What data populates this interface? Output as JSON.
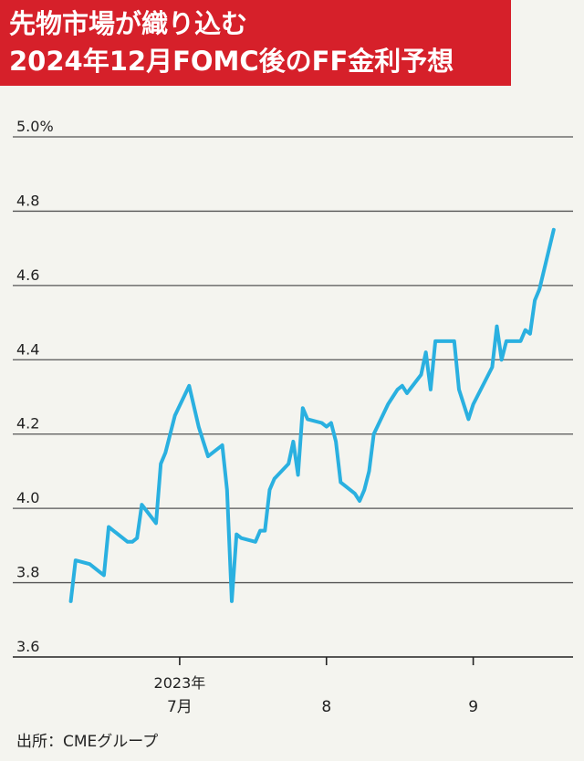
{
  "title": {
    "line1": "先物市場が織り込む",
    "line2": "2024年12月FOMC後のFF金利予想"
  },
  "source": "出所：CMEグループ",
  "colors": {
    "title_bg": "#d6202a",
    "line": "#2ab0e0",
    "grid": "#555555",
    "text": "#222222"
  },
  "chart_data": {
    "type": "line",
    "title": "先物市場が織り込む 2024年12月FOMC後のFF金利予想",
    "xlabel": "",
    "ylabel": "",
    "ylim": [
      3.6,
      5.0
    ],
    "yticks": [
      {
        "value": 5.0,
        "label": "5.0%"
      },
      {
        "value": 4.8,
        "label": "4.8"
      },
      {
        "value": 4.6,
        "label": "4.6"
      },
      {
        "value": 4.4,
        "label": "4.4"
      },
      {
        "value": 4.2,
        "label": "4.2"
      },
      {
        "value": 4.0,
        "label": "4.0"
      },
      {
        "value": 3.8,
        "label": "3.8"
      },
      {
        "value": 3.6,
        "label": "3.6"
      }
    ],
    "xticks": [
      {
        "date": "2023-07-01",
        "label": "7月",
        "year_label": "2023年"
      },
      {
        "date": "2023-08-01",
        "label": "8",
        "year_label": ""
      },
      {
        "date": "2023-09-01",
        "label": "9",
        "year_label": ""
      }
    ],
    "xlim": [
      "2023-06-05",
      "2023-09-19"
    ],
    "grid": true,
    "series": [
      {
        "name": "",
        "x": [
          "2023-06-08",
          "2023-06-09",
          "2023-06-12",
          "2023-06-13",
          "2023-06-14",
          "2023-06-15",
          "2023-06-16",
          "2023-06-19",
          "2023-06-20",
          "2023-06-21",
          "2023-06-22",
          "2023-06-23",
          "2023-06-26",
          "2023-06-27",
          "2023-06-28",
          "2023-06-29",
          "2023-06-30",
          "2023-07-03",
          "2023-07-05",
          "2023-07-06",
          "2023-07-07",
          "2023-07-10",
          "2023-07-11",
          "2023-07-12",
          "2023-07-13",
          "2023-07-14",
          "2023-07-17",
          "2023-07-18",
          "2023-07-19",
          "2023-07-20",
          "2023-07-21",
          "2023-07-24",
          "2023-07-25",
          "2023-07-26",
          "2023-07-27",
          "2023-07-28",
          "2023-07-31",
          "2023-08-01",
          "2023-08-02",
          "2023-08-03",
          "2023-08-04",
          "2023-08-07",
          "2023-08-08",
          "2023-08-09",
          "2023-08-10",
          "2023-08-11",
          "2023-08-14",
          "2023-08-15",
          "2023-08-16",
          "2023-08-17",
          "2023-08-18",
          "2023-08-21",
          "2023-08-22",
          "2023-08-23",
          "2023-08-24",
          "2023-08-25",
          "2023-08-28",
          "2023-08-29",
          "2023-08-30",
          "2023-08-31",
          "2023-09-01",
          "2023-09-05",
          "2023-09-06",
          "2023-09-07",
          "2023-09-08",
          "2023-09-11",
          "2023-09-12",
          "2023-09-13",
          "2023-09-14",
          "2023-09-15",
          "2023-09-18"
        ],
        "y": [
          3.75,
          3.86,
          3.85,
          3.84,
          3.83,
          3.82,
          3.95,
          3.92,
          3.91,
          3.91,
          3.92,
          4.01,
          3.96,
          4.12,
          4.15,
          4.2,
          4.25,
          4.33,
          4.22,
          4.18,
          4.14,
          4.17,
          4.05,
          3.75,
          3.93,
          3.92,
          3.91,
          3.94,
          3.94,
          4.05,
          4.08,
          4.12,
          4.18,
          4.09,
          4.27,
          4.24,
          4.23,
          4.22,
          4.23,
          4.18,
          4.07,
          4.04,
          4.02,
          4.05,
          4.1,
          4.2,
          4.28,
          4.3,
          4.32,
          4.33,
          4.31,
          4.36,
          4.42,
          4.32,
          4.45,
          4.45,
          4.45,
          4.32,
          4.28,
          4.24,
          4.28,
          4.38,
          4.49,
          4.4,
          4.45,
          4.45,
          4.48,
          4.47,
          4.56,
          4.59,
          4.75
        ]
      }
    ]
  }
}
